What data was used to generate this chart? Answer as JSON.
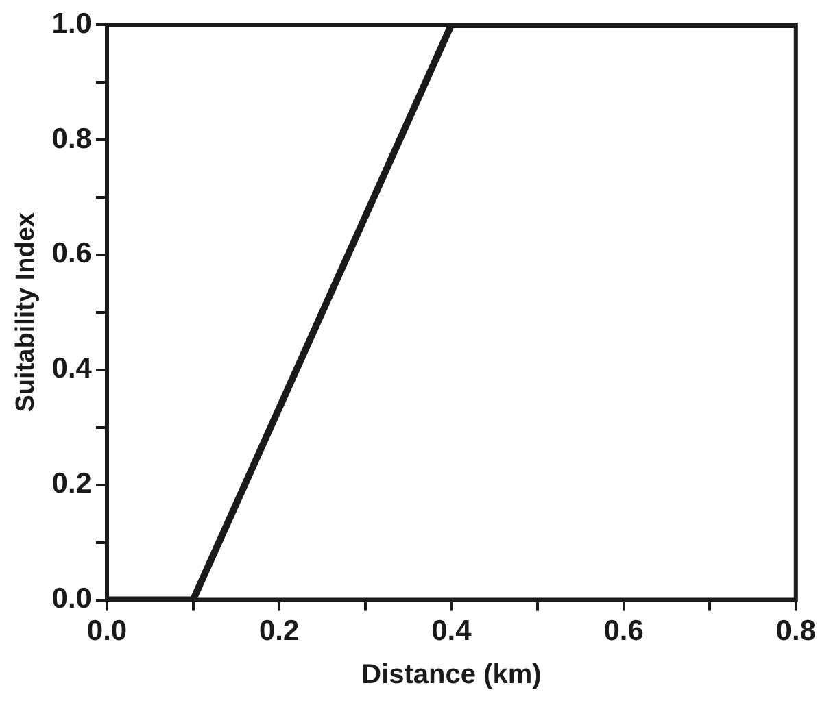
{
  "chart_data": {
    "type": "line",
    "xlabel": "Distance (km)",
    "ylabel": "Suitability Index",
    "x": [
      0,
      0.1,
      0.4,
      0.8
    ],
    "series": [
      {
        "color": "#1a1a1a",
        "values": [
          0,
          0,
          1,
          1
        ]
      }
    ],
    "xlim": [
      0,
      0.8
    ],
    "xticks": [
      {
        "value": 0,
        "label": "0.0"
      },
      {
        "value": 0.1,
        "label": null
      },
      {
        "value": 0.2,
        "label": "0.2"
      },
      {
        "value": 0.3,
        "label": null
      },
      {
        "value": 0.4,
        "label": "0.4"
      },
      {
        "value": 0.5,
        "label": null
      },
      {
        "value": 0.6,
        "label": "0.6"
      },
      {
        "value": 0.7,
        "label": null
      },
      {
        "value": 0.8,
        "label": "0.8"
      }
    ],
    "ylim": [
      0,
      1
    ],
    "yticks": [
      {
        "value": 0,
        "label": "0.0"
      },
      {
        "value": 0.1,
        "label": null
      },
      {
        "value": 0.2,
        "label": "0.2"
      },
      {
        "value": 0.3,
        "label": null
      },
      {
        "value": 0.4,
        "label": "0.4"
      },
      {
        "value": 0.5,
        "label": null
      },
      {
        "value": 0.6,
        "label": "0.6"
      },
      {
        "value": 0.7,
        "label": null
      },
      {
        "value": 0.8,
        "label": "0.8"
      },
      {
        "value": 0.9,
        "label": null
      },
      {
        "value": 1,
        "label": "1.0"
      }
    ],
    "grid": false,
    "legend": false,
    "marker": "none",
    "line_style": "solid"
  }
}
